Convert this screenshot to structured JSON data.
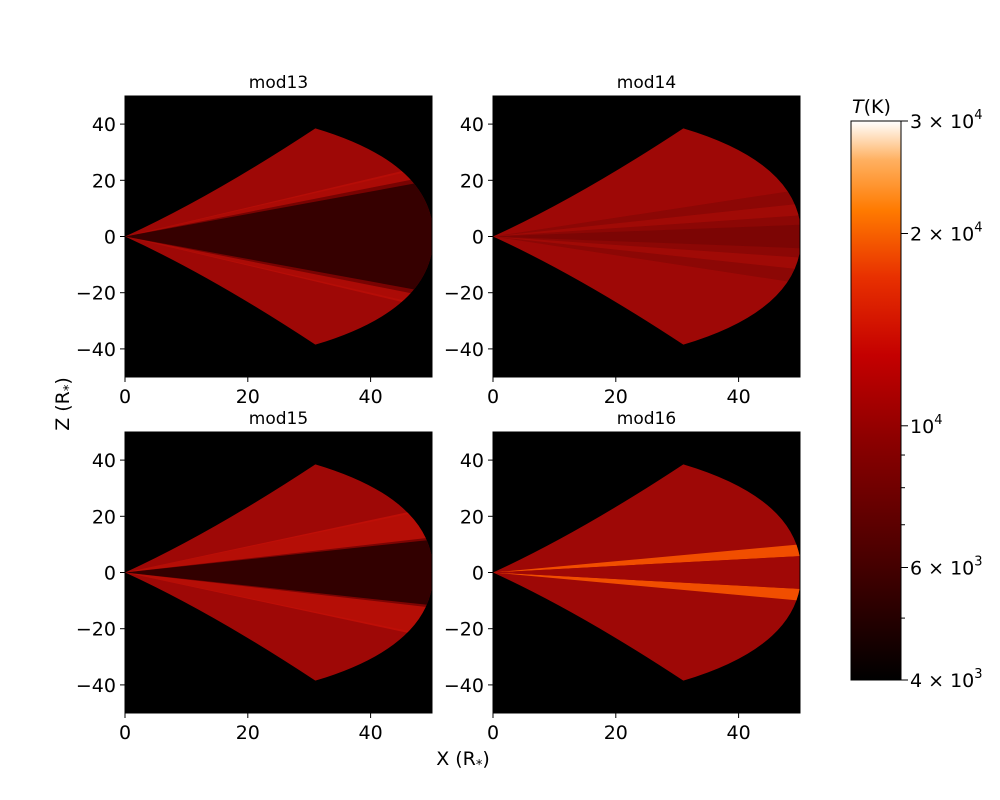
{
  "chart_data": {
    "type": "heatmap",
    "panels": [
      {
        "title": "mod13",
        "variant": "dark_wide"
      },
      {
        "title": "mod14",
        "variant": "mild"
      },
      {
        "title": "mod15",
        "variant": "dark_bright"
      },
      {
        "title": "mod16",
        "variant": "thin_bright"
      }
    ],
    "xlabel": "X (R$_*$)",
    "xlabel_main": "X (R",
    "xlabel_sub": "*",
    "xlabel_close": ")",
    "ylabel_main": "Z (R",
    "ylabel_sub": "*",
    "ylabel_close": ")",
    "xlim": [
      0,
      50
    ],
    "ylim": [
      -50,
      50
    ],
    "xticks": [
      0,
      20,
      40
    ],
    "xtick_labels": [
      "0",
      "20",
      "40"
    ],
    "yticks": [
      40,
      20,
      0,
      -20,
      -40
    ],
    "ytick_labels": [
      "40",
      "20",
      "0",
      "−20",
      "−40"
    ],
    "colorbar": {
      "label": "T(K)",
      "label_main": "T",
      "label_unit": "(K)",
      "scale": "log",
      "range": [
        4000,
        30000
      ],
      "ticks": [
        {
          "value": 30000,
          "mantissa": "3 × 10",
          "exp": "4"
        },
        {
          "value": 20000,
          "mantissa": "2 × 10",
          "exp": "4"
        },
        {
          "value": 10000,
          "mantissa": "10",
          "exp": "4"
        },
        {
          "value": 6000,
          "mantissa": "6 × 10",
          "exp": "3"
        },
        {
          "value": 4000,
          "mantissa": "4 × 10",
          "exp": "3"
        }
      ],
      "minor_ticks": [
        5000,
        7000,
        8000,
        9000
      ],
      "colors": [
        "#000000",
        "#4a0000",
        "#8c0000",
        "#c40000",
        "#e83000",
        "#ff7a00",
        "#ffb060",
        "#ffffff"
      ]
    },
    "colors": {
      "background": "#000000",
      "body_fill": "#9e0806",
      "dark_core": "#2a0000",
      "bright_ray": "#c01008",
      "orange_ray": "#ff5a00"
    }
  }
}
